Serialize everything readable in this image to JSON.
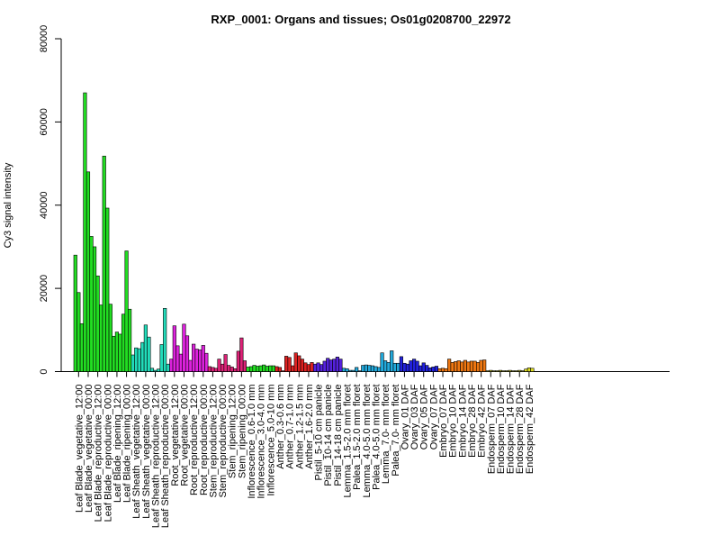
{
  "chart_data": {
    "type": "bar",
    "title": "RXP_0001: Organs and tissues; Os01g0208700_22972",
    "xlabel": "",
    "ylabel": "Cy3 signal intensity",
    "ylim": [
      0,
      80000
    ],
    "yticks": [
      0,
      20000,
      40000,
      60000,
      80000
    ],
    "grid": false,
    "legend": "none",
    "groups": [
      {
        "label": "Leaf Blade_vegetative_12:00",
        "color": "#22dd22",
        "values": [
          28000,
          19000,
          11500
        ]
      },
      {
        "label": "Leaf Blade_vegetative_00:00",
        "color": "#22dd22",
        "values": [
          67000,
          48000,
          32500
        ]
      },
      {
        "label": "Leaf Blade_reproductive_12:00",
        "color": "#22dd22",
        "values": [
          30000,
          23000,
          16000
        ]
      },
      {
        "label": "Leaf Blade_reproductive_00:00",
        "color": "#22dd22",
        "values": [
          51800,
          39300,
          16200
        ]
      },
      {
        "label": "Leaf Blade_ripening_12:00",
        "color": "#22dd22",
        "values": [
          8500,
          9500,
          9000
        ]
      },
      {
        "label": "Leaf Blade_ripening_00:00",
        "color": "#22dd22",
        "values": [
          13800,
          29000,
          15000
        ]
      },
      {
        "label": "Leaf Sheath_vegetative_12:00",
        "color": "#22ddbb",
        "values": [
          4000,
          5700,
          5500
        ]
      },
      {
        "label": "Leaf Sheath_vegetative_00:00",
        "color": "#22ddbb",
        "values": [
          7000,
          11200,
          8300
        ]
      },
      {
        "label": "Leaf Sheath_reproductive_12:00",
        "color": "#22ddbb",
        "values": [
          800,
          300,
          600
        ]
      },
      {
        "label": "Leaf Sheath_reproductive_00:00",
        "color": "#22ddbb",
        "values": [
          6500,
          15200,
          1800
        ]
      },
      {
        "label": "Root_vegetative_12:00",
        "color": "#dd22dd",
        "values": [
          3000,
          11000,
          6200
        ]
      },
      {
        "label": "Root_vegetative_00:00",
        "color": "#dd22dd",
        "values": [
          4200,
          11400,
          8600
        ]
      },
      {
        "label": "Root_reproductive_12:00",
        "color": "#dd22dd",
        "values": [
          2700,
          6600,
          5400
        ]
      },
      {
        "label": "Root_reproductive_00:00",
        "color": "#dd22dd",
        "values": [
          5200,
          6300,
          4400
        ]
      },
      {
        "label": "Stem_reproductive_12:00",
        "color": "#dd2277",
        "values": [
          1200,
          1000,
          800
        ]
      },
      {
        "label": "Stem_reproductive_00:00",
        "color": "#dd2277",
        "values": [
          3000,
          1800,
          4100
        ]
      },
      {
        "label": "Stem_ripening_12:00",
        "color": "#dd2277",
        "values": [
          1500,
          1100,
          700
        ]
      },
      {
        "label": "Stem_ripening_00:00",
        "color": "#dd2277",
        "values": [
          4900,
          8100,
          2600
        ]
      },
      {
        "label": "Inflorescence_0.6-1.0 mm",
        "color": "#22dd22",
        "values": [
          1100,
          1200,
          1500
        ]
      },
      {
        "label": "Inflorescence_3.0-4.0 mm",
        "color": "#22dd22",
        "values": [
          1300,
          1400,
          1600
        ]
      },
      {
        "label": "Inflorescence_5.0-10 mm",
        "color": "#22dd22",
        "values": [
          1300,
          1400,
          1400
        ]
      },
      {
        "label": "Anther_0.3-0.6 mm",
        "color": "#dd2222",
        "values": [
          1200,
          1000,
          200
        ]
      },
      {
        "label": "Anther_0.7-1.0 mm",
        "color": "#dd2222",
        "values": [
          3700,
          3400,
          1400
        ]
      },
      {
        "label": "Anther_1.2-1.5 mm",
        "color": "#dd2222",
        "values": [
          4500,
          3800,
          3000
        ]
      },
      {
        "label": "Anther_1.6-2.0 mm",
        "color": "#dd2222",
        "values": [
          2100,
          1700,
          2200
        ]
      },
      {
        "label": "Pistil_5-10 cm panicle",
        "color": "#5522dd",
        "values": [
          1800,
          2100,
          1700
        ]
      },
      {
        "label": "Pistil_10-14 cm panicle",
        "color": "#5522dd",
        "values": [
          2500,
          3200,
          2800
        ]
      },
      {
        "label": "Pistil_14-18 cm panicle",
        "color": "#5522dd",
        "values": [
          3000,
          3500,
          3000
        ]
      },
      {
        "label": "Lemma_1.5-2.0 mm floret",
        "color": "#22aadd",
        "values": [
          800,
          700,
          300
        ]
      },
      {
        "label": "Palea_1.5-2.0 mm floret",
        "color": "#22aadd",
        "values": [
          300,
          1000,
          200
        ]
      },
      {
        "label": "Lemma_4.0-5.0 mm floret",
        "color": "#22aadd",
        "values": [
          1500,
          1600,
          1500
        ]
      },
      {
        "label": "Palea_4.0-5.0 mm floret",
        "color": "#22aadd",
        "values": [
          1400,
          1200,
          1000
        ]
      },
      {
        "label": "Lemma_7.0- mm floret",
        "color": "#22aadd",
        "values": [
          4500,
          2600,
          2200
        ]
      },
      {
        "label": "Palea_7.0- mm floret",
        "color": "#22aadd",
        "values": [
          5000,
          2000,
          2000
        ]
      },
      {
        "label": "Ovary_01 DAF",
        "color": "#2222dd",
        "values": [
          3600,
          2000,
          1800
        ]
      },
      {
        "label": "Ovary_03 DAF",
        "color": "#2222dd",
        "values": [
          2600,
          3000,
          2500
        ]
      },
      {
        "label": "Ovary_05 DAF",
        "color": "#2222dd",
        "values": [
          1400,
          2100,
          1500
        ]
      },
      {
        "label": "Ovary_07 DAF",
        "color": "#2222dd",
        "values": [
          900,
          1100,
          1300
        ]
      },
      {
        "label": "Embryo_07 DAF",
        "color": "#ee7711",
        "values": [
          700,
          800,
          700
        ]
      },
      {
        "label": "Embryo_10 DAF",
        "color": "#ee7711",
        "values": [
          3000,
          2200,
          2400
        ]
      },
      {
        "label": "Embryo_14 DAF",
        "color": "#ee7711",
        "values": [
          2600,
          2300,
          2700
        ]
      },
      {
        "label": "Embryo_28 DAF",
        "color": "#ee7711",
        "values": [
          2300,
          2500,
          2500
        ]
      },
      {
        "label": "Embryo_42 DAF",
        "color": "#ee7711",
        "values": [
          2200,
          2700,
          2800
        ]
      },
      {
        "label": "Endosperm_07 DAF",
        "color": "#cccc22",
        "values": [
          200,
          300,
          200
        ]
      },
      {
        "label": "Endosperm_10 DAF",
        "color": "#cccc22",
        "values": [
          200,
          300,
          200
        ]
      },
      {
        "label": "Endosperm_14 DAF",
        "color": "#cccc22",
        "values": [
          200,
          300,
          200
        ]
      },
      {
        "label": "Endosperm_28 DAF",
        "color": "#cccc22",
        "values": [
          200,
          300,
          200
        ]
      },
      {
        "label": "Endosperm_42 DAF",
        "color": "#dddd22",
        "values": [
          600,
          900,
          800
        ]
      }
    ]
  }
}
